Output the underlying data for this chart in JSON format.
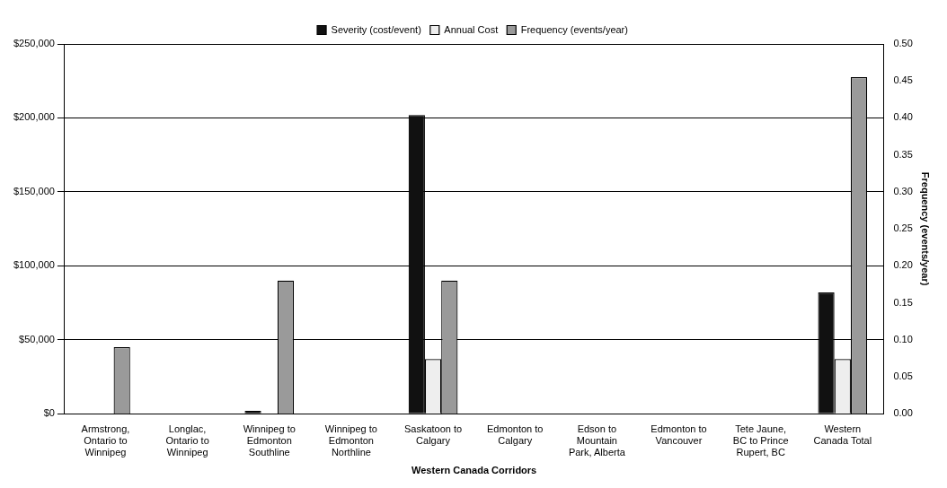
{
  "chart_data": {
    "type": "bar",
    "xlabel": "Western Canada Corridors",
    "y2label": "Frequency (events/year)",
    "categories": [
      [
        "Armstrong,",
        "Ontario to",
        "Winnipeg"
      ],
      [
        "Longlac,",
        "Ontario to",
        "Winnipeg"
      ],
      [
        "Winnipeg to",
        "Edmonton",
        "Southline"
      ],
      [
        "Winnipeg to",
        "Edmonton",
        "Northline"
      ],
      [
        "Saskatoon to",
        "Calgary"
      ],
      [
        "Edmonton to",
        "Calgary"
      ],
      [
        "Edson to",
        "Mountain",
        "Park, Alberta"
      ],
      [
        "Edmonton to",
        "Vancouver"
      ],
      [
        "Tete Jaune,",
        "BC to Prince",
        "Rupert, BC"
      ],
      [
        "Western",
        "Canada Total"
      ]
    ],
    "series": [
      {
        "name": "Severity (cost/event)",
        "color": "#111111",
        "values": [
          0,
          0,
          2000,
          0,
          202000,
          0,
          0,
          0,
          0,
          82000
        ]
      },
      {
        "name": "Annual Cost",
        "color": "#eeeeee",
        "values": [
          0,
          0,
          null,
          0,
          37000,
          0,
          0,
          0,
          0,
          37000
        ]
      },
      {
        "name": "Frequency (events/year)",
        "color": "#9a9a9a",
        "axis": "y2",
        "values": [
          0.09,
          0,
          0.18,
          0,
          0.18,
          0,
          0,
          0,
          0,
          0.455
        ]
      }
    ],
    "ylim": [
      0,
      250000
    ],
    "yticks": [
      {
        "value": 0,
        "label": "$0"
      },
      {
        "value": 50000,
        "label": "$50,000"
      },
      {
        "value": 100000,
        "label": "$100,000"
      },
      {
        "value": 150000,
        "label": "$150,000"
      },
      {
        "value": 200000,
        "label": "$200,000"
      },
      {
        "value": 250000,
        "label": "$250,000"
      }
    ],
    "y2lim": [
      0,
      0.5
    ],
    "y2ticks": [
      {
        "value": 0,
        "label": "0.00"
      },
      {
        "value": 0.05,
        "label": "0.05"
      },
      {
        "value": 0.1,
        "label": "0.10"
      },
      {
        "value": 0.15,
        "label": "0.15"
      },
      {
        "value": 0.2,
        "label": "0.20"
      },
      {
        "value": 0.25,
        "label": "0.25"
      },
      {
        "value": 0.3,
        "label": "0.30"
      },
      {
        "value": 0.35,
        "label": "0.35"
      },
      {
        "value": 0.4,
        "label": "0.40"
      },
      {
        "value": 0.45,
        "label": "0.45"
      },
      {
        "value": 0.5,
        "label": "0.50"
      }
    ],
    "grid": "y",
    "legend": "top"
  }
}
